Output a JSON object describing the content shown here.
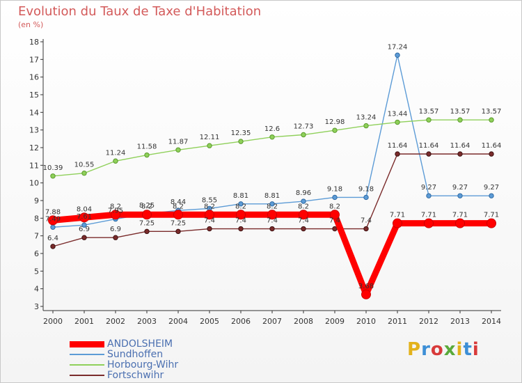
{
  "title": "Evolution du Taux de Taxe d'Habitation",
  "subtitle": "(en %)",
  "logo": {
    "text": "Proxiti",
    "colors": [
      "#e3b21b",
      "#3d8fd6",
      "#d83a3a",
      "#5aaa3b",
      "#e3b21b",
      "#3d8fd6",
      "#d83a3a"
    ]
  },
  "chart_data": {
    "type": "line",
    "title": "Evolution du Taux de Taxe d'Habitation",
    "ylabel": "(en %)",
    "ylim": [
      3,
      18
    ],
    "yticks": [
      3,
      4,
      5,
      6,
      7,
      8,
      9,
      10,
      11,
      12,
      13,
      14,
      15,
      16,
      17,
      18
    ],
    "x": [
      "2000",
      "2001",
      "2002",
      "2003",
      "2004",
      "2005",
      "2006",
      "2007",
      "2008",
      "2009",
      "2010",
      "2011",
      "2012",
      "2013",
      "2014"
    ],
    "grid": false,
    "legend": "bottom-left",
    "series": [
      {
        "name": "ANDOLSHEIM",
        "color": "#ff0000",
        "values": [
          7.88,
          8.04,
          8.2,
          8.2,
          8.2,
          8.2,
          8.2,
          8.2,
          8.2,
          8.2,
          3.68,
          7.71,
          7.71,
          7.71,
          7.71
        ],
        "labels": [
          "7.88",
          "8.04",
          "8.2",
          "8.2",
          "8.2",
          "8.2",
          "8.2",
          "8.2",
          "8.2",
          "8.2",
          "3.68",
          "7.71",
          "7.71",
          "7.71",
          "7.71"
        ]
      },
      {
        "name": "Sundhoffen",
        "color": "#5c9bd6",
        "values": [
          7.49,
          7.61,
          7.95,
          8.25,
          8.44,
          8.55,
          8.81,
          8.81,
          8.96,
          9.18,
          9.18,
          17.24,
          9.27,
          9.27,
          9.27
        ],
        "labels": [
          "7.49",
          "7.61",
          "7.95",
          "8.25",
          "8.44",
          "8.55",
          "8.81",
          "8.81",
          "8.96",
          "9.18",
          "9.18",
          "17.24",
          "9.27",
          "9.27",
          "9.27"
        ]
      },
      {
        "name": "Horbourg-Wihr",
        "color": "#8fd05a",
        "values": [
          10.39,
          10.55,
          11.24,
          11.58,
          11.87,
          12.11,
          12.35,
          12.6,
          12.73,
          12.98,
          13.24,
          13.44,
          13.57,
          13.57,
          13.57
        ],
        "labels": [
          "10.39",
          "10.55",
          "11.24",
          "11.58",
          "11.87",
          "12.11",
          "12.35",
          "12.6",
          "12.73",
          "12.98",
          "13.24",
          "13.44",
          "13.57",
          "13.57",
          "13.57"
        ]
      },
      {
        "name": "Fortschwihr",
        "color": "#7a2b2b",
        "values": [
          6.4,
          6.9,
          6.9,
          7.25,
          7.25,
          7.4,
          7.4,
          7.4,
          7.4,
          7.4,
          7.4,
          11.64,
          11.64,
          11.64,
          11.64
        ],
        "labels": [
          "6.4",
          "6.9",
          "6.9",
          "7.25",
          "7.25",
          "7.4",
          "7.4",
          "7.4",
          "7.4",
          "7.4",
          "7.4",
          "11.64",
          "11.64",
          "11.64",
          "11.64"
        ]
      }
    ]
  }
}
